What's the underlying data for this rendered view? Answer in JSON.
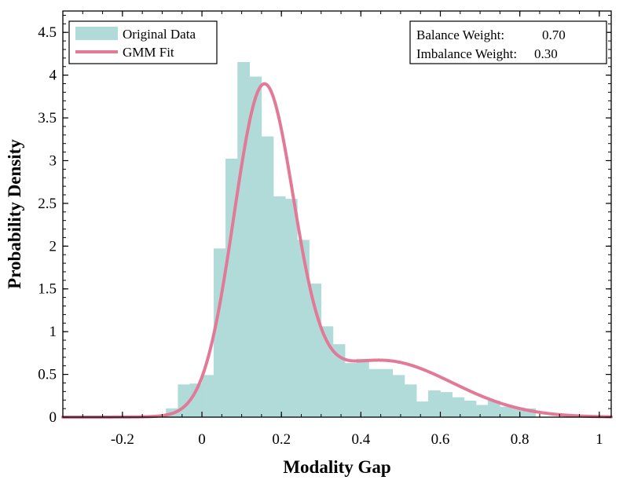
{
  "chart_data": {
    "type": "bar",
    "title": "",
    "xlabel": "Modality Gap",
    "ylabel": "Probability Density",
    "xlim": [
      -0.35,
      1.03
    ],
    "ylim": [
      0,
      4.75
    ],
    "grid": false,
    "x_ticks": [
      -0.2,
      0,
      0.2,
      0.4,
      0.6,
      0.8,
      1
    ],
    "x_tick_labels": [
      "-0.2",
      "0",
      "0.2",
      "0.4",
      "0.6",
      "0.8",
      "1"
    ],
    "y_ticks": [
      0,
      0.5,
      1,
      1.5,
      2,
      2.5,
      3,
      3.5,
      4,
      4.5
    ],
    "y_tick_labels": [
      "0",
      "0.5",
      "1",
      "1.5",
      "2",
      "2.5",
      "3",
      "3.5",
      "4",
      "4.5"
    ],
    "histogram": {
      "name": "Original Data",
      "color": "#b0dbd9",
      "bin_edges": [
        -0.09,
        -0.06,
        -0.03,
        0.0,
        0.03,
        0.06,
        0.09,
        0.12,
        0.15,
        0.18,
        0.21,
        0.24,
        0.27,
        0.3,
        0.33,
        0.36,
        0.39,
        0.42,
        0.45,
        0.48,
        0.51,
        0.54,
        0.57,
        0.6,
        0.63,
        0.66,
        0.69,
        0.72,
        0.75,
        0.78,
        0.81,
        0.84
      ],
      "densities": [
        0.1,
        0.38,
        0.39,
        0.49,
        1.97,
        3.02,
        4.15,
        3.98,
        3.28,
        2.58,
        2.55,
        2.07,
        1.56,
        1.06,
        0.85,
        0.63,
        0.68,
        0.56,
        0.56,
        0.49,
        0.38,
        0.18,
        0.31,
        0.29,
        0.23,
        0.19,
        0.14,
        0.19,
        0.12,
        0.11,
        0.1
      ]
    },
    "gmm_fit": {
      "name": "GMM Fit",
      "color": "#e27a97",
      "components": [
        {
          "weight": 0.7,
          "mean": 0.155,
          "sd": 0.075
        },
        {
          "weight": 0.3,
          "mean": 0.45,
          "sd": 0.18
        }
      ]
    },
    "legend": {
      "placement": "top-left",
      "entries": [
        {
          "label": "Original Data",
          "kind": "patch"
        },
        {
          "label": "GMM Fit",
          "kind": "line"
        }
      ]
    },
    "annotation": {
      "placement": "top-right",
      "lines": [
        {
          "label": "Balance Weight:",
          "value": "0.70"
        },
        {
          "label": "Imbalance Weight:",
          "value": "0.30"
        }
      ]
    }
  }
}
